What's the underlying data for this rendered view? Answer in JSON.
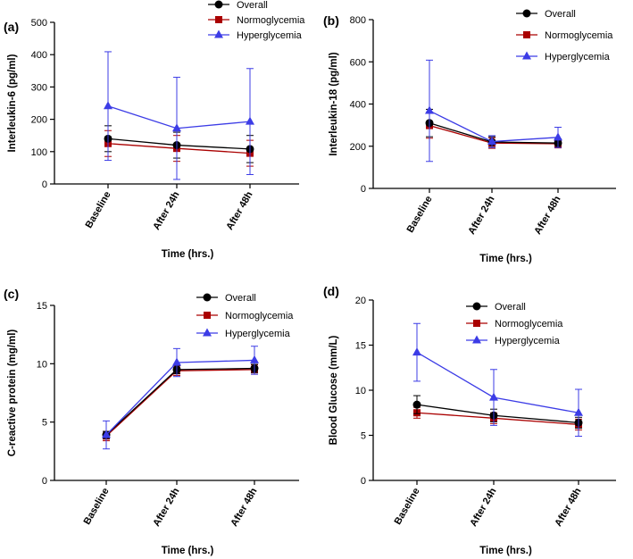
{
  "chart_data": [
    {
      "type": "line",
      "panel_label": "(a)",
      "ylabel": "Interleukin-6 (pg/ml)",
      "xlabel": "Time (hrs.)",
      "ylim": [
        0,
        500
      ],
      "yticks": [
        0,
        100,
        200,
        300,
        400,
        500
      ],
      "categories": [
        "Baseline",
        "After 24h",
        "After 48h"
      ],
      "series": [
        {
          "name": "Overall",
          "color": "#000000",
          "marker": "circle",
          "values": [
            140,
            120,
            108
          ],
          "err": [
            40,
            40,
            42
          ]
        },
        {
          "name": "Normoglycemia",
          "color": "#aa0000",
          "marker": "square",
          "values": [
            125,
            110,
            95
          ],
          "err": [
            40,
            40,
            40
          ]
        },
        {
          "name": "Hyperglycemia",
          "color": "#3c3ce6",
          "marker": "triangle",
          "values": [
            241,
            172,
            193
          ],
          "err": [
            168,
            158,
            164
          ]
        }
      ]
    },
    {
      "type": "line",
      "panel_label": "(b)",
      "ylabel": "Interleukin-18 (pg/ml)",
      "xlabel": "Time (hrs.)",
      "ylim": [
        0,
        800
      ],
      "yticks": [
        0,
        200,
        400,
        600,
        800
      ],
      "categories": [
        "Baseline",
        "After 24h",
        "After 48h"
      ],
      "series": [
        {
          "name": "Overall",
          "color": "#000000",
          "marker": "circle",
          "values": [
            310,
            220,
            215
          ],
          "err": [
            65,
            25,
            20
          ]
        },
        {
          "name": "Normoglycemia",
          "color": "#aa0000",
          "marker": "square",
          "values": [
            298,
            215,
            212
          ],
          "err": [
            60,
            25,
            20
          ]
        },
        {
          "name": "Hyperglycemia",
          "color": "#3c3ce6",
          "marker": "triangle",
          "values": [
            368,
            222,
            242
          ],
          "err": [
            240,
            28,
            48
          ]
        }
      ]
    },
    {
      "type": "line",
      "panel_label": "(c)",
      "ylabel": "C-reactive protein (mg/ml)",
      "xlabel": "Time (hrs.)",
      "ylim": [
        0,
        15
      ],
      "yticks": [
        0,
        5,
        10,
        15
      ],
      "categories": [
        "Baseline",
        "After 24h",
        "After 48h"
      ],
      "series": [
        {
          "name": "Overall",
          "color": "#000000",
          "marker": "circle",
          "values": [
            3.9,
            9.5,
            9.6
          ],
          "err": [
            0.3,
            0.35,
            0.35
          ]
        },
        {
          "name": "Normoglycemia",
          "color": "#aa0000",
          "marker": "square",
          "values": [
            3.8,
            9.4,
            9.5
          ],
          "err": [
            0.4,
            0.4,
            0.4
          ]
        },
        {
          "name": "Hyperglycemia",
          "color": "#3c3ce6",
          "marker": "triangle",
          "values": [
            3.9,
            10.1,
            10.3
          ],
          "err": [
            1.2,
            1.2,
            1.2
          ]
        }
      ]
    },
    {
      "type": "line",
      "panel_label": "(d)",
      "ylabel": "Blood Glucose (mm/L)",
      "xlabel": "Time (hrs.)",
      "ylim": [
        0,
        20
      ],
      "yticks": [
        0,
        5,
        10,
        15,
        20
      ],
      "categories": [
        "Baseline",
        "After 24h",
        "After 48h"
      ],
      "series": [
        {
          "name": "Overall",
          "color": "#000000",
          "marker": "circle",
          "values": [
            8.4,
            7.2,
            6.4
          ],
          "err": [
            1.0,
            0.7,
            0.6
          ]
        },
        {
          "name": "Normoglycemia",
          "color": "#aa0000",
          "marker": "square",
          "values": [
            7.5,
            6.9,
            6.2
          ],
          "err": [
            0.6,
            0.6,
            0.6
          ]
        },
        {
          "name": "Hyperglycemia",
          "color": "#3c3ce6",
          "marker": "triangle",
          "values": [
            14.2,
            9.2,
            7.5
          ],
          "err": [
            3.2,
            3.1,
            2.6
          ]
        }
      ]
    }
  ]
}
